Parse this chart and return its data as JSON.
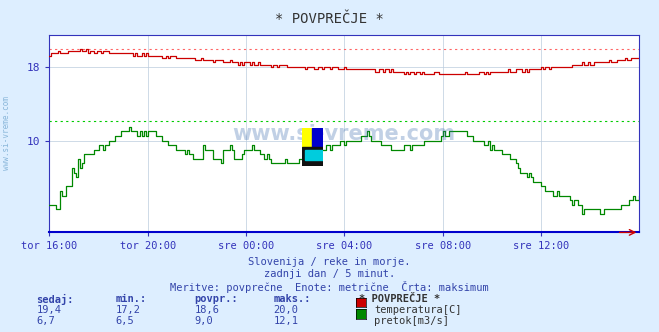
{
  "title": "* POVPREČJE *",
  "bg_color": "#ddeeff",
  "plot_bg_color": "#ffffff",
  "grid_color": "#bbccdd",
  "x_labels": [
    "tor 16:00",
    "tor 20:00",
    "sre 00:00",
    "sre 04:00",
    "sre 08:00",
    "sre 12:00"
  ],
  "x_ticks_idx": [
    0,
    48,
    96,
    144,
    192,
    240
  ],
  "total_points": 289,
  "temp_color": "#cc0000",
  "flow_color": "#008800",
  "temp_max_line_color": "#ff6666",
  "flow_max_line_color": "#00cc00",
  "axis_color": "#3333bb",
  "title_color": "#333333",
  "text_color": "#3344aa",
  "ylim": [
    0,
    21.5
  ],
  "yticks": [
    10,
    18
  ],
  "temp_max_val": 20.0,
  "flow_max_val": 12.1,
  "temp_min": 17.2,
  "temp_avg": 18.6,
  "temp_current": 19.4,
  "flow_min": 6.5,
  "flow_max": 12.1,
  "flow_avg": 9.0,
  "flow_current": 6.7,
  "subtitle1": "Slovenija / reke in morje.",
  "subtitle2": "zadnji dan / 5 minut.",
  "subtitle3": "Meritve: povprečne  Enote: metrične  Črta: maksimum",
  "legend_title": "* POVPREČJE *",
  "legend_temp": "temperatura[C]",
  "legend_flow": "pretok[m3/s]",
  "watermark": "www.si-vreme.com",
  "stat_headers": [
    "sedaj:",
    "min.:",
    "povpr.:",
    "maks.:"
  ],
  "temp_stats": [
    "19,4",
    "17,2",
    "18,6",
    "20,0"
  ],
  "flow_stats": [
    "6,7",
    "6,5",
    "9,0",
    "12,1"
  ]
}
